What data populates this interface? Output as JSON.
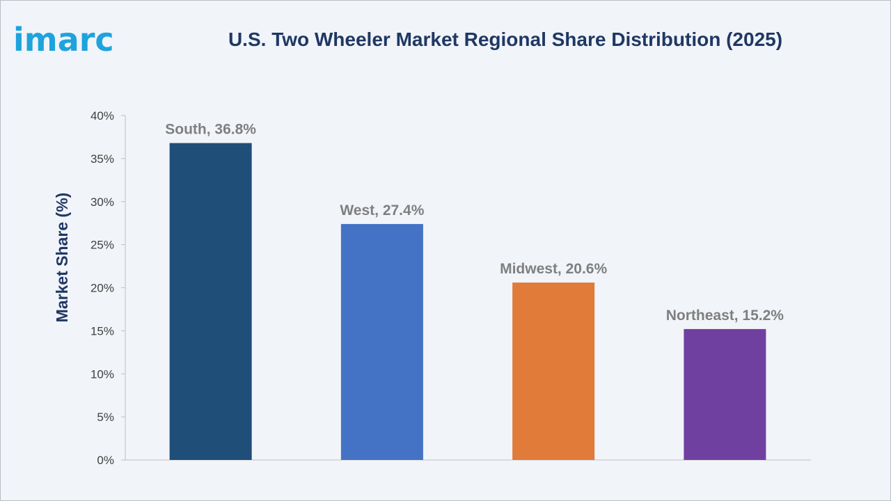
{
  "brand": {
    "logo_text": "imarc",
    "logo_color": "#1ea3dd"
  },
  "chart_data": {
    "type": "bar",
    "title": "U.S. Two Wheeler Market Regional Share Distribution (2025)",
    "xlabel": "",
    "ylabel": "Market Share (%)",
    "ylim": [
      0,
      40
    ],
    "yticks": [
      0,
      5,
      10,
      15,
      20,
      25,
      30,
      35,
      40
    ],
    "ytick_labels": [
      "0%",
      "5%",
      "10%",
      "15%",
      "20%",
      "25%",
      "30%",
      "35%",
      "40%"
    ],
    "categories": [
      "South",
      "West",
      "Midwest",
      "Northeast"
    ],
    "values": [
      36.8,
      27.4,
      20.6,
      15.2
    ],
    "data_labels": [
      "South, 36.8%",
      "West, 27.4%",
      "Midwest, 20.6%",
      "Northeast, 15.2%"
    ],
    "colors": [
      "#1f4e79",
      "#4472c4",
      "#e07b39",
      "#7040a0"
    ],
    "grid": false,
    "legend": "none"
  }
}
